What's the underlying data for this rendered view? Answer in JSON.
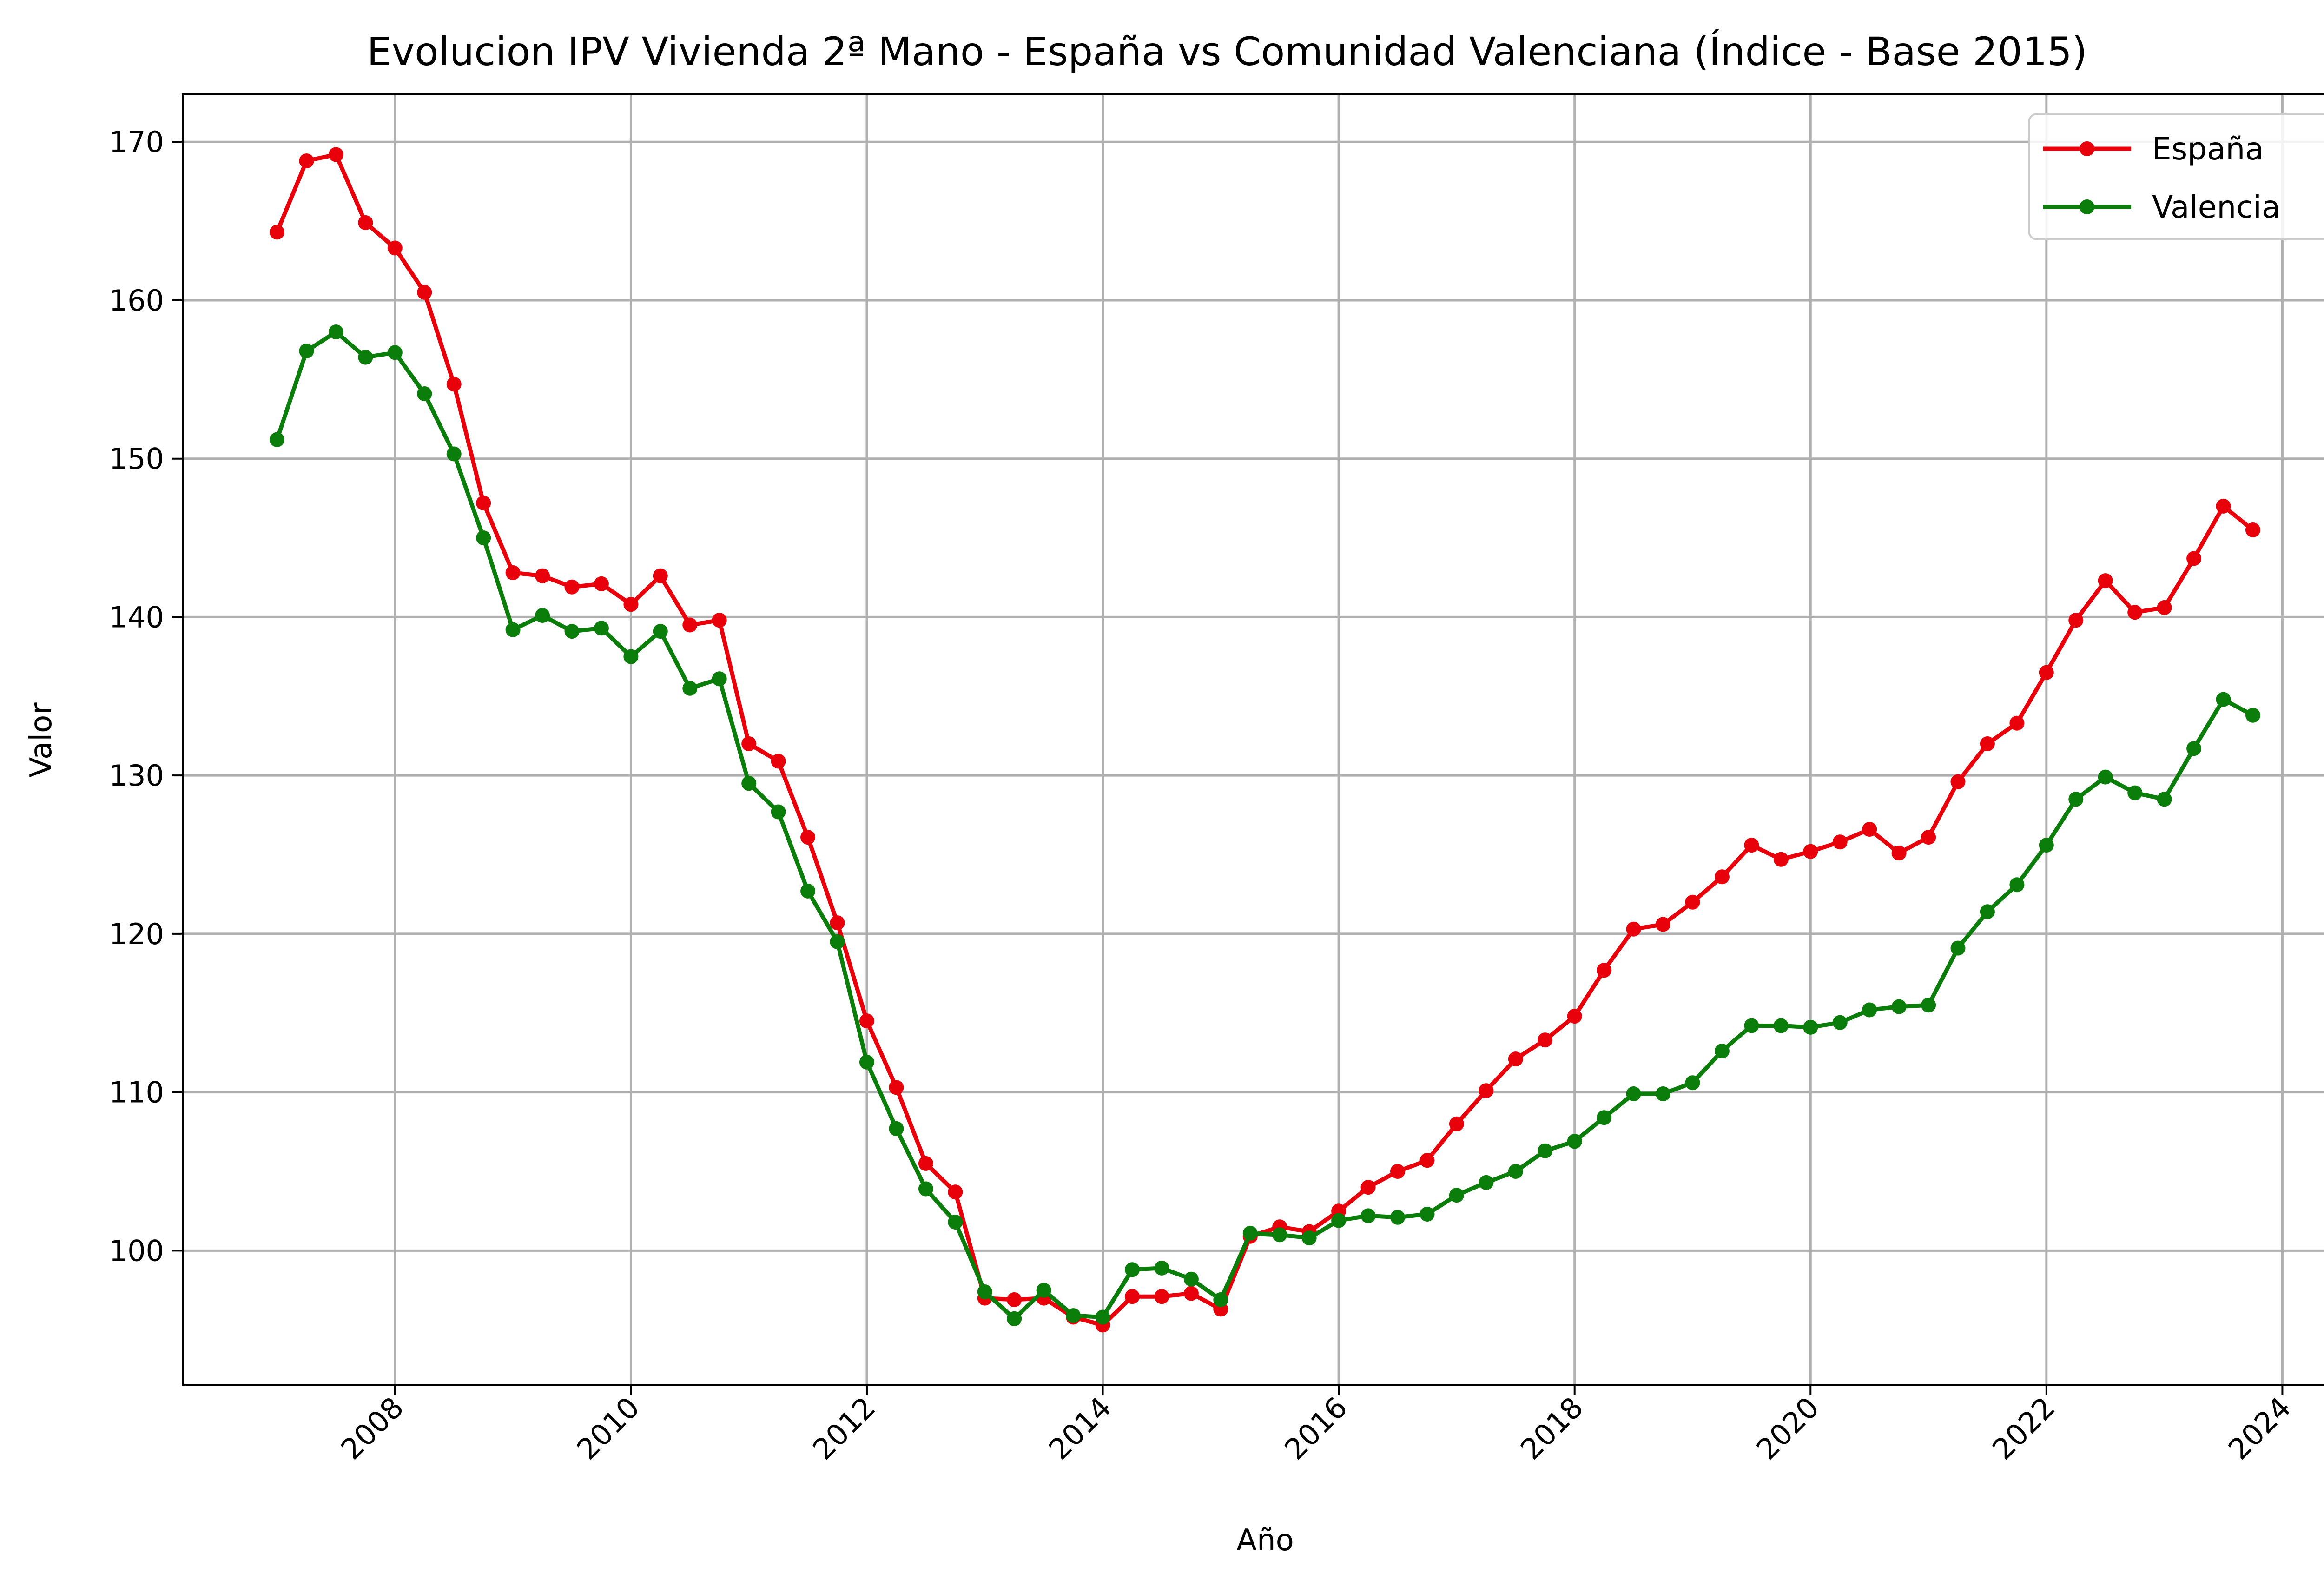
{
  "chart_data": {
    "type": "line",
    "title": "Evolucion IPV Vivienda 2ª Mano -  España vs Comunidad Valenciana (Índice - Base 2015)",
    "xlabel": "Año",
    "ylabel": "Valor",
    "xlim": [
      2006.2,
      2024.55
    ],
    "ylim": [
      91.5,
      173.0
    ],
    "xticks": [
      2008,
      2010,
      2012,
      2014,
      2016,
      2018,
      2020,
      2022,
      2024
    ],
    "yticks": [
      100,
      110,
      120,
      130,
      140,
      150,
      160,
      170
    ],
    "grid": true,
    "legend_position": "top-right",
    "x": [
      2007.0,
      2007.25,
      2007.5,
      2007.75,
      2008.0,
      2008.25,
      2008.5,
      2008.75,
      2009.0,
      2009.25,
      2009.5,
      2009.75,
      2010.0,
      2010.25,
      2010.5,
      2010.75,
      2011.0,
      2011.25,
      2011.5,
      2011.75,
      2012.0,
      2012.25,
      2012.5,
      2012.75,
      2013.0,
      2013.25,
      2013.5,
      2013.75,
      2014.0,
      2014.25,
      2014.5,
      2014.75,
      2015.0,
      2015.25,
      2015.5,
      2015.75,
      2016.0,
      2016.25,
      2016.5,
      2016.75,
      2017.0,
      2017.25,
      2017.5,
      2017.75,
      2018.0,
      2018.25,
      2018.5,
      2018.75,
      2019.0,
      2019.25,
      2019.5,
      2019.75,
      2020.0,
      2020.25,
      2020.5,
      2020.75,
      2021.0,
      2021.25,
      2021.5,
      2021.75,
      2022.0,
      2022.25,
      2022.5,
      2022.75,
      2023.0,
      2023.25,
      2023.5,
      2023.75
    ],
    "series": [
      {
        "name": "España",
        "color": "#e8000b",
        "values": [
          164.3,
          168.8,
          169.2,
          164.9,
          163.3,
          160.5,
          154.7,
          147.2,
          142.8,
          142.6,
          141.9,
          142.1,
          140.8,
          142.6,
          139.5,
          139.8,
          132.0,
          130.9,
          126.1,
          120.7,
          114.5,
          110.3,
          105.5,
          103.7,
          97.0,
          96.9,
          97.0,
          95.8,
          95.3,
          97.1,
          97.1,
          97.3,
          96.3,
          100.9,
          101.5,
          101.2,
          102.5,
          104.0,
          105.0,
          105.7,
          108.0,
          110.1,
          112.1,
          113.3,
          114.8,
          117.7,
          120.3,
          120.6,
          122.0,
          123.6,
          125.6,
          124.7,
          125.2,
          125.8,
          126.6,
          125.1,
          126.1,
          129.6,
          132.0,
          133.3,
          136.5,
          139.8,
          142.3,
          140.3,
          140.6,
          143.7,
          147.0,
          145.5
        ]
      },
      {
        "name": "Valencia",
        "color": "#0a7d0a",
        "values": [
          151.2,
          156.8,
          158.0,
          156.4,
          156.7,
          154.1,
          150.3,
          145.0,
          139.2,
          140.1,
          139.1,
          139.3,
          137.5,
          139.1,
          135.5,
          136.1,
          129.5,
          127.7,
          122.7,
          119.5,
          111.9,
          107.7,
          103.9,
          101.8,
          97.4,
          95.7,
          97.5,
          95.9,
          95.8,
          98.8,
          98.9,
          98.2,
          96.9,
          101.1,
          101.0,
          100.8,
          101.9,
          102.2,
          102.1,
          102.3,
          103.5,
          104.3,
          105.0,
          106.3,
          106.9,
          108.4,
          109.9,
          109.9,
          110.6,
          112.6,
          114.2,
          114.2,
          114.1,
          114.4,
          115.2,
          115.4,
          115.5,
          119.1,
          121.4,
          123.1,
          125.6,
          128.5,
          129.9,
          128.9,
          128.5,
          131.7,
          134.8,
          133.8
        ]
      }
    ]
  }
}
